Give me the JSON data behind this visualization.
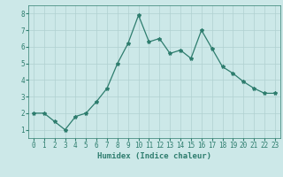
{
  "x": [
    0,
    1,
    2,
    3,
    4,
    5,
    6,
    7,
    8,
    9,
    10,
    11,
    12,
    13,
    14,
    15,
    16,
    17,
    18,
    19,
    20,
    21,
    22,
    23
  ],
  "y": [
    2.0,
    2.0,
    1.5,
    1.0,
    1.8,
    2.0,
    2.7,
    3.5,
    5.0,
    6.2,
    7.9,
    6.3,
    6.5,
    5.6,
    5.8,
    5.3,
    7.0,
    5.9,
    4.8,
    4.4,
    3.9,
    3.5,
    3.2,
    3.2
  ],
  "line_color": "#2e7d6e",
  "marker": "*",
  "marker_size": 3.0,
  "bg_color": "#cce8e8",
  "grid_color": "#b0d0d0",
  "xlabel": "Humidex (Indice chaleur)",
  "xlim": [
    -0.5,
    23.5
  ],
  "ylim": [
    0.5,
    8.5
  ],
  "yticks": [
    1,
    2,
    3,
    4,
    5,
    6,
    7,
    8
  ],
  "xticks": [
    0,
    1,
    2,
    3,
    4,
    5,
    6,
    7,
    8,
    9,
    10,
    11,
    12,
    13,
    14,
    15,
    16,
    17,
    18,
    19,
    20,
    21,
    22,
    23
  ],
  "xlabel_fontsize": 6.5,
  "tick_fontsize": 5.5,
  "line_width": 0.9
}
